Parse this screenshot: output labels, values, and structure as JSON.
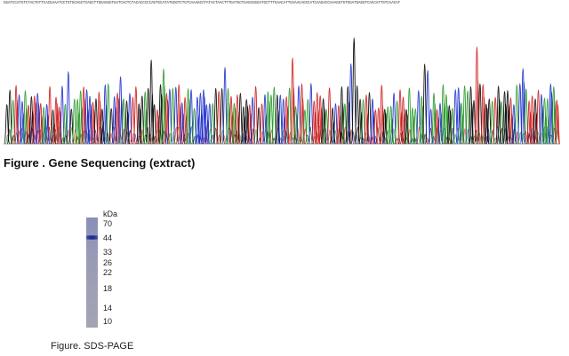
{
  "sequencing": {
    "sequence": "GGATCCATGTCTACTGTTCACGAAATCCTGTGCAGCTCAGCTTGGAGGGTGATCACTCTACACCCCCAGTGCATATGGGTCTGTCAAAGCCTATACTAACTTTGATGCTGAGCGGGATGCTTTGAACATTGAAACAGCCATCAAGACCAAAGGTGTGGATGAGGTCACCATTGTCAACAT",
    "caption": "Figure . Gene Sequencing (extract)"
  },
  "sds_page": {
    "unit": "kDa",
    "markers": [
      70,
      44,
      33,
      26,
      22,
      18,
      14,
      10
    ],
    "caption": "Figure. SDS-PAGE"
  }
}
